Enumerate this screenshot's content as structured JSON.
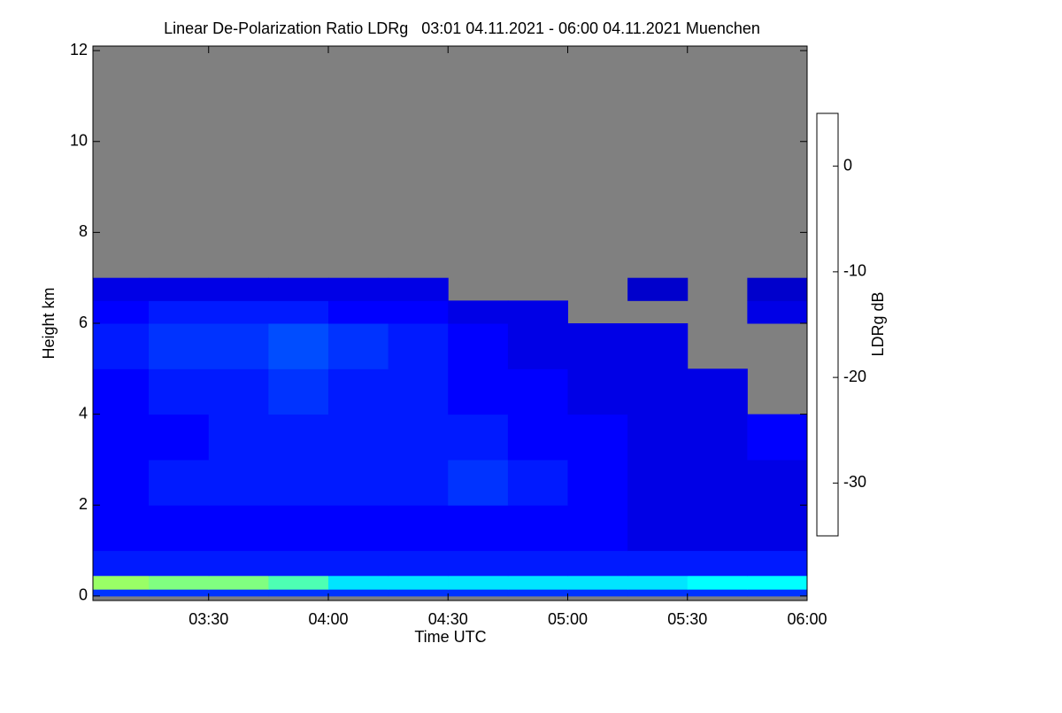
{
  "chart_data": {
    "type": "heatmap",
    "title": "Linear De-Polarization Ratio LDRg   03:01 04.11.2021 - 06:00 04.11.2021 Muenchen",
    "xlabel": "Time UTC",
    "ylabel": "Height km",
    "colorbar_label": "LDRg dB",
    "colormap": "jet",
    "nan_color": "#808080",
    "x_edges": [
      3.0167,
      3.25,
      3.5,
      3.75,
      4.0,
      4.25,
      4.5,
      4.75,
      5.0,
      5.25,
      5.5,
      5.75,
      6.0
    ],
    "y_edges": [
      0,
      0.15,
      0.45,
      1,
      2,
      3,
      4,
      5,
      6,
      6.5,
      7
    ],
    "z": [
      [
        -28,
        -28,
        -28,
        -28,
        -28,
        -28,
        -28,
        -28,
        -28,
        -28,
        -28,
        -28
      ],
      [
        -14,
        -15,
        -15,
        -17,
        -21,
        -21,
        -21,
        -21,
        -21,
        -21,
        -20,
        -20
      ],
      [
        -29,
        -29,
        -29,
        -29,
        -29,
        -29,
        -29,
        -29,
        -29,
        -29,
        -29,
        -29
      ],
      [
        -30,
        -30,
        -30,
        -30,
        -30,
        -30,
        -30,
        -30,
        -30,
        -31,
        -31,
        -31
      ],
      [
        -30,
        -29,
        -29,
        -29,
        -29,
        -29,
        -28,
        -29,
        -30,
        -31,
        -31,
        -31
      ],
      [
        -30,
        -30,
        -29,
        -29,
        -29,
        -29,
        -29,
        -30,
        -30,
        -31,
        -31,
        -30
      ],
      [
        -30,
        -29,
        -29,
        -28,
        -29,
        -29,
        -30,
        -30,
        -31,
        -31,
        -31,
        null
      ],
      [
        -29,
        -28,
        -28,
        -27,
        -28,
        -29,
        -30,
        -31,
        -31,
        -31,
        null,
        null
      ],
      [
        -30,
        -29,
        -29,
        -29,
        -30,
        -30,
        -31,
        -31,
        null,
        null,
        null,
        -31
      ],
      [
        -31,
        -31,
        -31,
        -31,
        -31,
        -31,
        null,
        null,
        null,
        -32,
        null,
        -32
      ]
    ],
    "xlim": [
      3.0167,
      6.0
    ],
    "xticks": [
      {
        "value": 3.5,
        "label": "03:30"
      },
      {
        "value": 4.0,
        "label": "04:00"
      },
      {
        "value": 4.5,
        "label": "04:30"
      },
      {
        "value": 5.0,
        "label": "05:00"
      },
      {
        "value": 5.5,
        "label": "05:30"
      },
      {
        "value": 6.0,
        "label": "06:00"
      }
    ],
    "ylim": [
      -0.1,
      12.1
    ],
    "yticks": [
      0,
      2,
      4,
      6,
      8,
      10,
      12
    ],
    "zlim": [
      -35,
      5
    ],
    "zticks": [
      0,
      -10,
      -20,
      -30
    ]
  }
}
